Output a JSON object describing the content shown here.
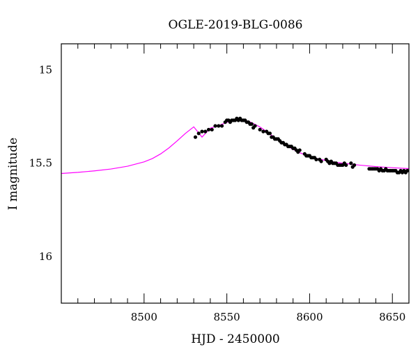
{
  "chart_data": {
    "type": "scatter",
    "title": "OGLE-2019-BLG-0086",
    "xlabel": "HJD - 2450000",
    "ylabel": "I magnitude",
    "xlim": [
      8450,
      8660
    ],
    "ylim": [
      16.25,
      14.86
    ],
    "y_inverted": true,
    "grid": false,
    "x_ticks": [
      8500,
      8550,
      8600,
      8650
    ],
    "x_tick_labels": [
      "8500",
      "8550",
      "8600",
      "8650"
    ],
    "y_ticks": [
      15,
      15.5,
      16
    ],
    "y_tick_labels": [
      "15",
      "15.5",
      "16"
    ],
    "model_color": "#ff00ff",
    "point_color": "#000000",
    "series": [
      {
        "kind": "model",
        "x": [
          8450,
          8460,
          8470,
          8480,
          8490,
          8500,
          8505,
          8510,
          8515,
          8520,
          8525,
          8530,
          8535,
          8540,
          8545,
          8550,
          8555,
          8558,
          8560,
          8565,
          8570,
          8575,
          8580,
          8585,
          8590,
          8595,
          8600,
          8605,
          8610,
          8615,
          8620,
          8630,
          8640,
          8650,
          8660
        ],
        "y": [
          15.555,
          15.549,
          15.541,
          15.531,
          15.516,
          15.493,
          15.475,
          15.45,
          15.418,
          15.38,
          15.34,
          15.305,
          15.36,
          15.312,
          15.298,
          15.281,
          15.267,
          15.263,
          15.266,
          15.282,
          15.306,
          15.336,
          15.37,
          15.4,
          15.426,
          15.447,
          15.462,
          15.476,
          15.486,
          15.494,
          15.5,
          15.51,
          15.518,
          15.524,
          15.529
        ]
      },
      {
        "kind": "observations",
        "x": [
          8531,
          8533,
          8535,
          8537,
          8539,
          8541,
          8543,
          8545,
          8547,
          8549,
          8550,
          8551,
          8552,
          8553,
          8554,
          8555,
          8556,
          8557,
          8558,
          8559,
          8560,
          8561,
          8562,
          8563,
          8564,
          8565,
          8566,
          8567,
          8570,
          8572,
          8574,
          8575,
          8576,
          8577,
          8578,
          8579,
          8580,
          8581,
          8582,
          8583,
          8584,
          8585,
          8586,
          8587,
          8588,
          8589,
          8590,
          8591,
          8592,
          8593,
          8594,
          8597,
          8598,
          8599,
          8600,
          8601,
          8602,
          8603,
          8604,
          8606,
          8607,
          8610,
          8611,
          8612,
          8613,
          8614,
          8615,
          8616,
          8617,
          8618,
          8619,
          8620,
          8621,
          8622,
          8625,
          8626,
          8627,
          8636,
          8637,
          8638,
          8639,
          8640,
          8641,
          8642,
          8643,
          8644,
          8645,
          8646,
          8647,
          8648,
          8649,
          8650,
          8651,
          8652,
          8653,
          8654,
          8655,
          8656,
          8657,
          8658,
          8659
        ],
        "y": [
          15.36,
          15.34,
          15.33,
          15.33,
          15.32,
          15.32,
          15.3,
          15.3,
          15.3,
          15.28,
          15.27,
          15.27,
          15.28,
          15.27,
          15.27,
          15.27,
          15.26,
          15.27,
          15.26,
          15.27,
          15.27,
          15.27,
          15.28,
          15.28,
          15.29,
          15.29,
          15.31,
          15.3,
          15.32,
          15.33,
          15.33,
          15.34,
          15.34,
          15.36,
          15.36,
          15.37,
          15.37,
          15.37,
          15.38,
          15.39,
          15.39,
          15.4,
          15.4,
          15.41,
          15.41,
          15.41,
          15.42,
          15.42,
          15.43,
          15.44,
          15.43,
          15.45,
          15.46,
          15.46,
          15.46,
          15.47,
          15.47,
          15.47,
          15.48,
          15.48,
          15.49,
          15.48,
          15.49,
          15.5,
          15.49,
          15.5,
          15.5,
          15.5,
          15.51,
          15.51,
          15.51,
          15.51,
          15.5,
          15.51,
          15.5,
          15.52,
          15.51,
          15.53,
          15.53,
          15.53,
          15.53,
          15.53,
          15.53,
          15.54,
          15.53,
          15.54,
          15.54,
          15.53,
          15.54,
          15.54,
          15.54,
          15.54,
          15.54,
          15.54,
          15.55,
          15.55,
          15.54,
          15.55,
          15.54,
          15.55,
          15.54
        ]
      }
    ]
  }
}
